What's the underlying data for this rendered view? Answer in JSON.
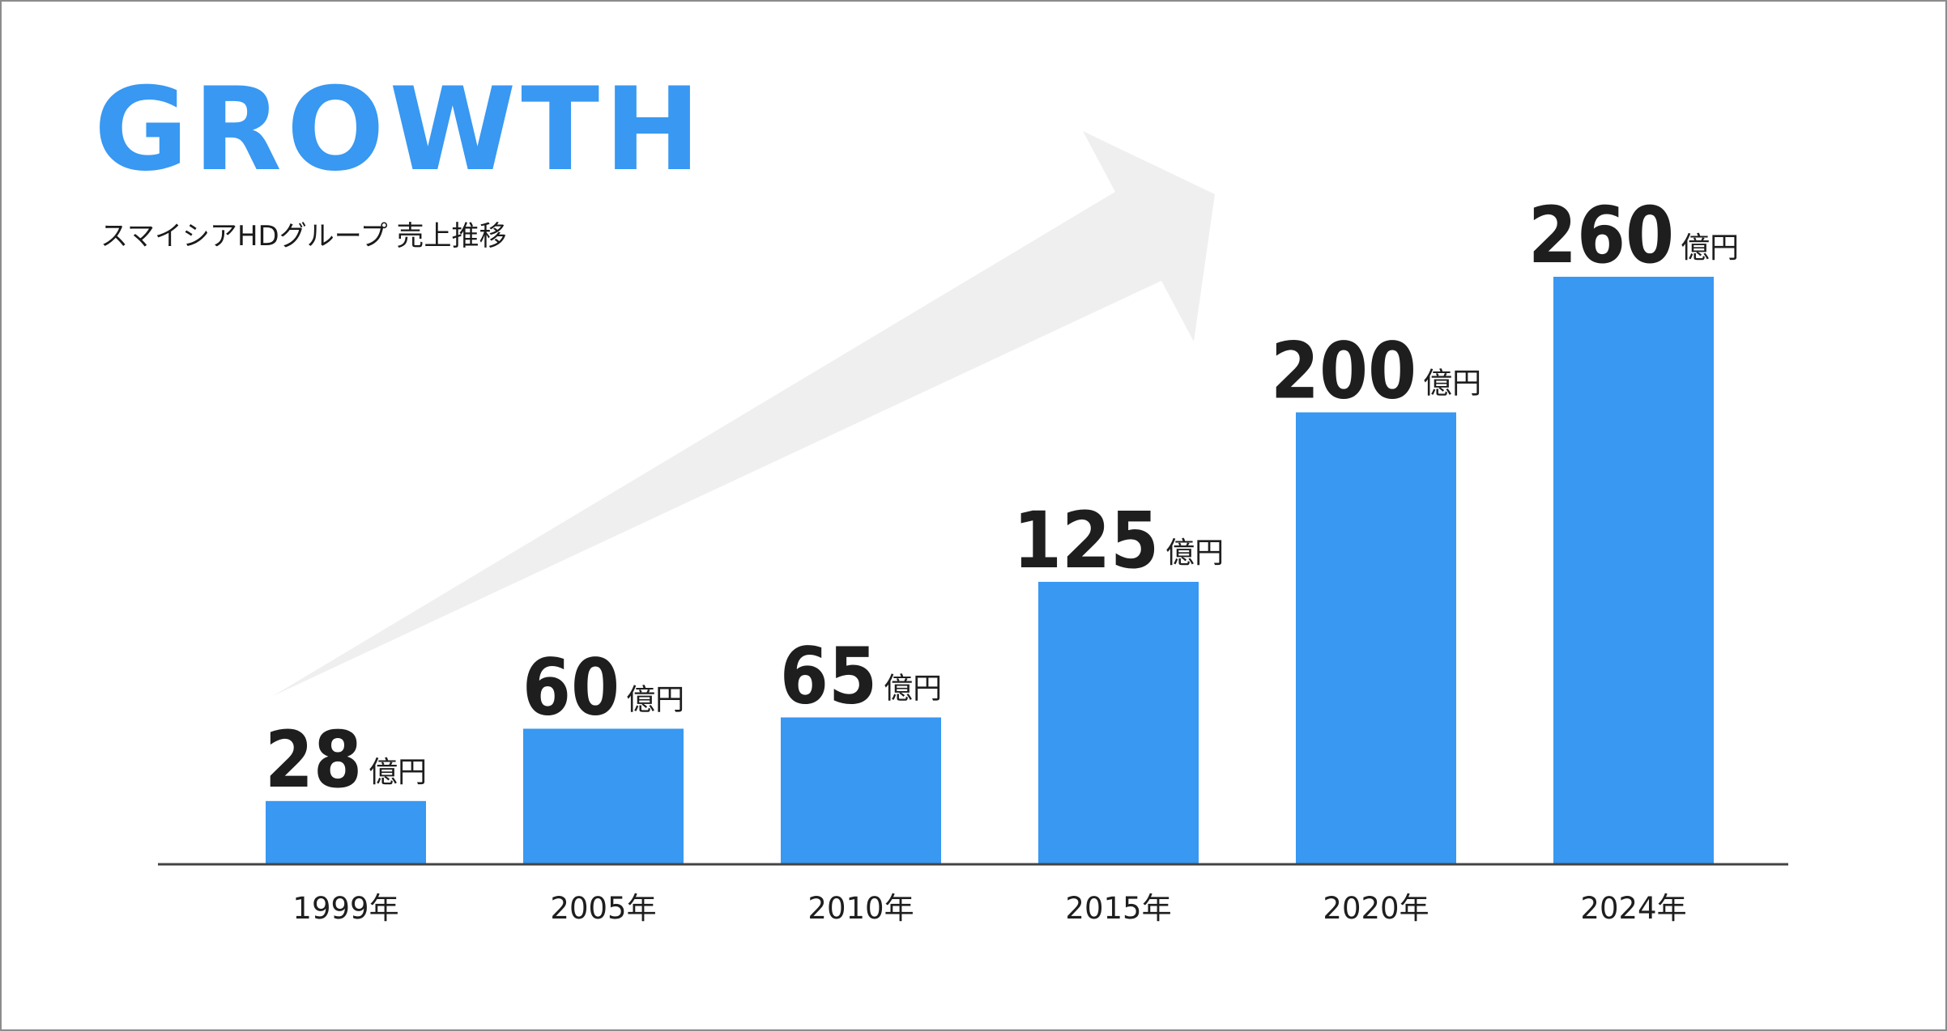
{
  "header": {
    "title": "GROWTH",
    "subtitle": "スマイシアHDグループ 売上推移"
  },
  "colors": {
    "title": "#3898f2",
    "bar": "#3898f2",
    "arrow": "#efefef",
    "axis": "#444444",
    "text": "#1e1e1e"
  },
  "chart_data": {
    "type": "bar",
    "title": "GROWTH",
    "subtitle": "スマイシアHDグループ 売上推移",
    "categories": [
      "1999年",
      "2005年",
      "2010年",
      "2015年",
      "2020年",
      "2024年"
    ],
    "values": [
      28,
      60,
      65,
      125,
      200,
      260
    ],
    "value_labels": [
      "28",
      "60",
      "65",
      "125",
      "200",
      "260"
    ],
    "unit_label": "億円",
    "xlabel": "",
    "ylabel": "",
    "ylim": [
      0,
      260
    ],
    "grid": false,
    "legend": "none",
    "decoration": "upward-arrow"
  }
}
